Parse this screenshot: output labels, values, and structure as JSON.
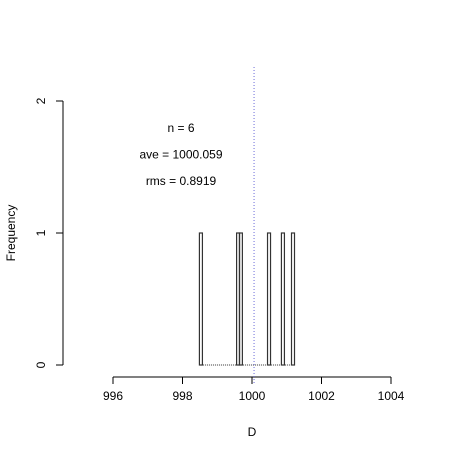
{
  "chart_data": {
    "type": "spike",
    "x_label": "D",
    "y_label": "Frequency",
    "annotations": [
      "n = 6",
      "ave = 1000.059",
      "rms = 0.8919"
    ],
    "mean_line": 1000.059,
    "mean_color": "#6a6ad8",
    "x": [
      998.53,
      999.6,
      999.68,
      1000.49,
      1000.89,
      1001.18
    ],
    "values": [
      1,
      1,
      1,
      1,
      1,
      1
    ],
    "color": "#333333",
    "xlim": [
      996,
      1004
    ],
    "xticks": [
      996,
      998,
      1000,
      1002,
      1004
    ],
    "ylim": [
      0,
      2
    ],
    "yticks": [
      0,
      1,
      2
    ]
  }
}
